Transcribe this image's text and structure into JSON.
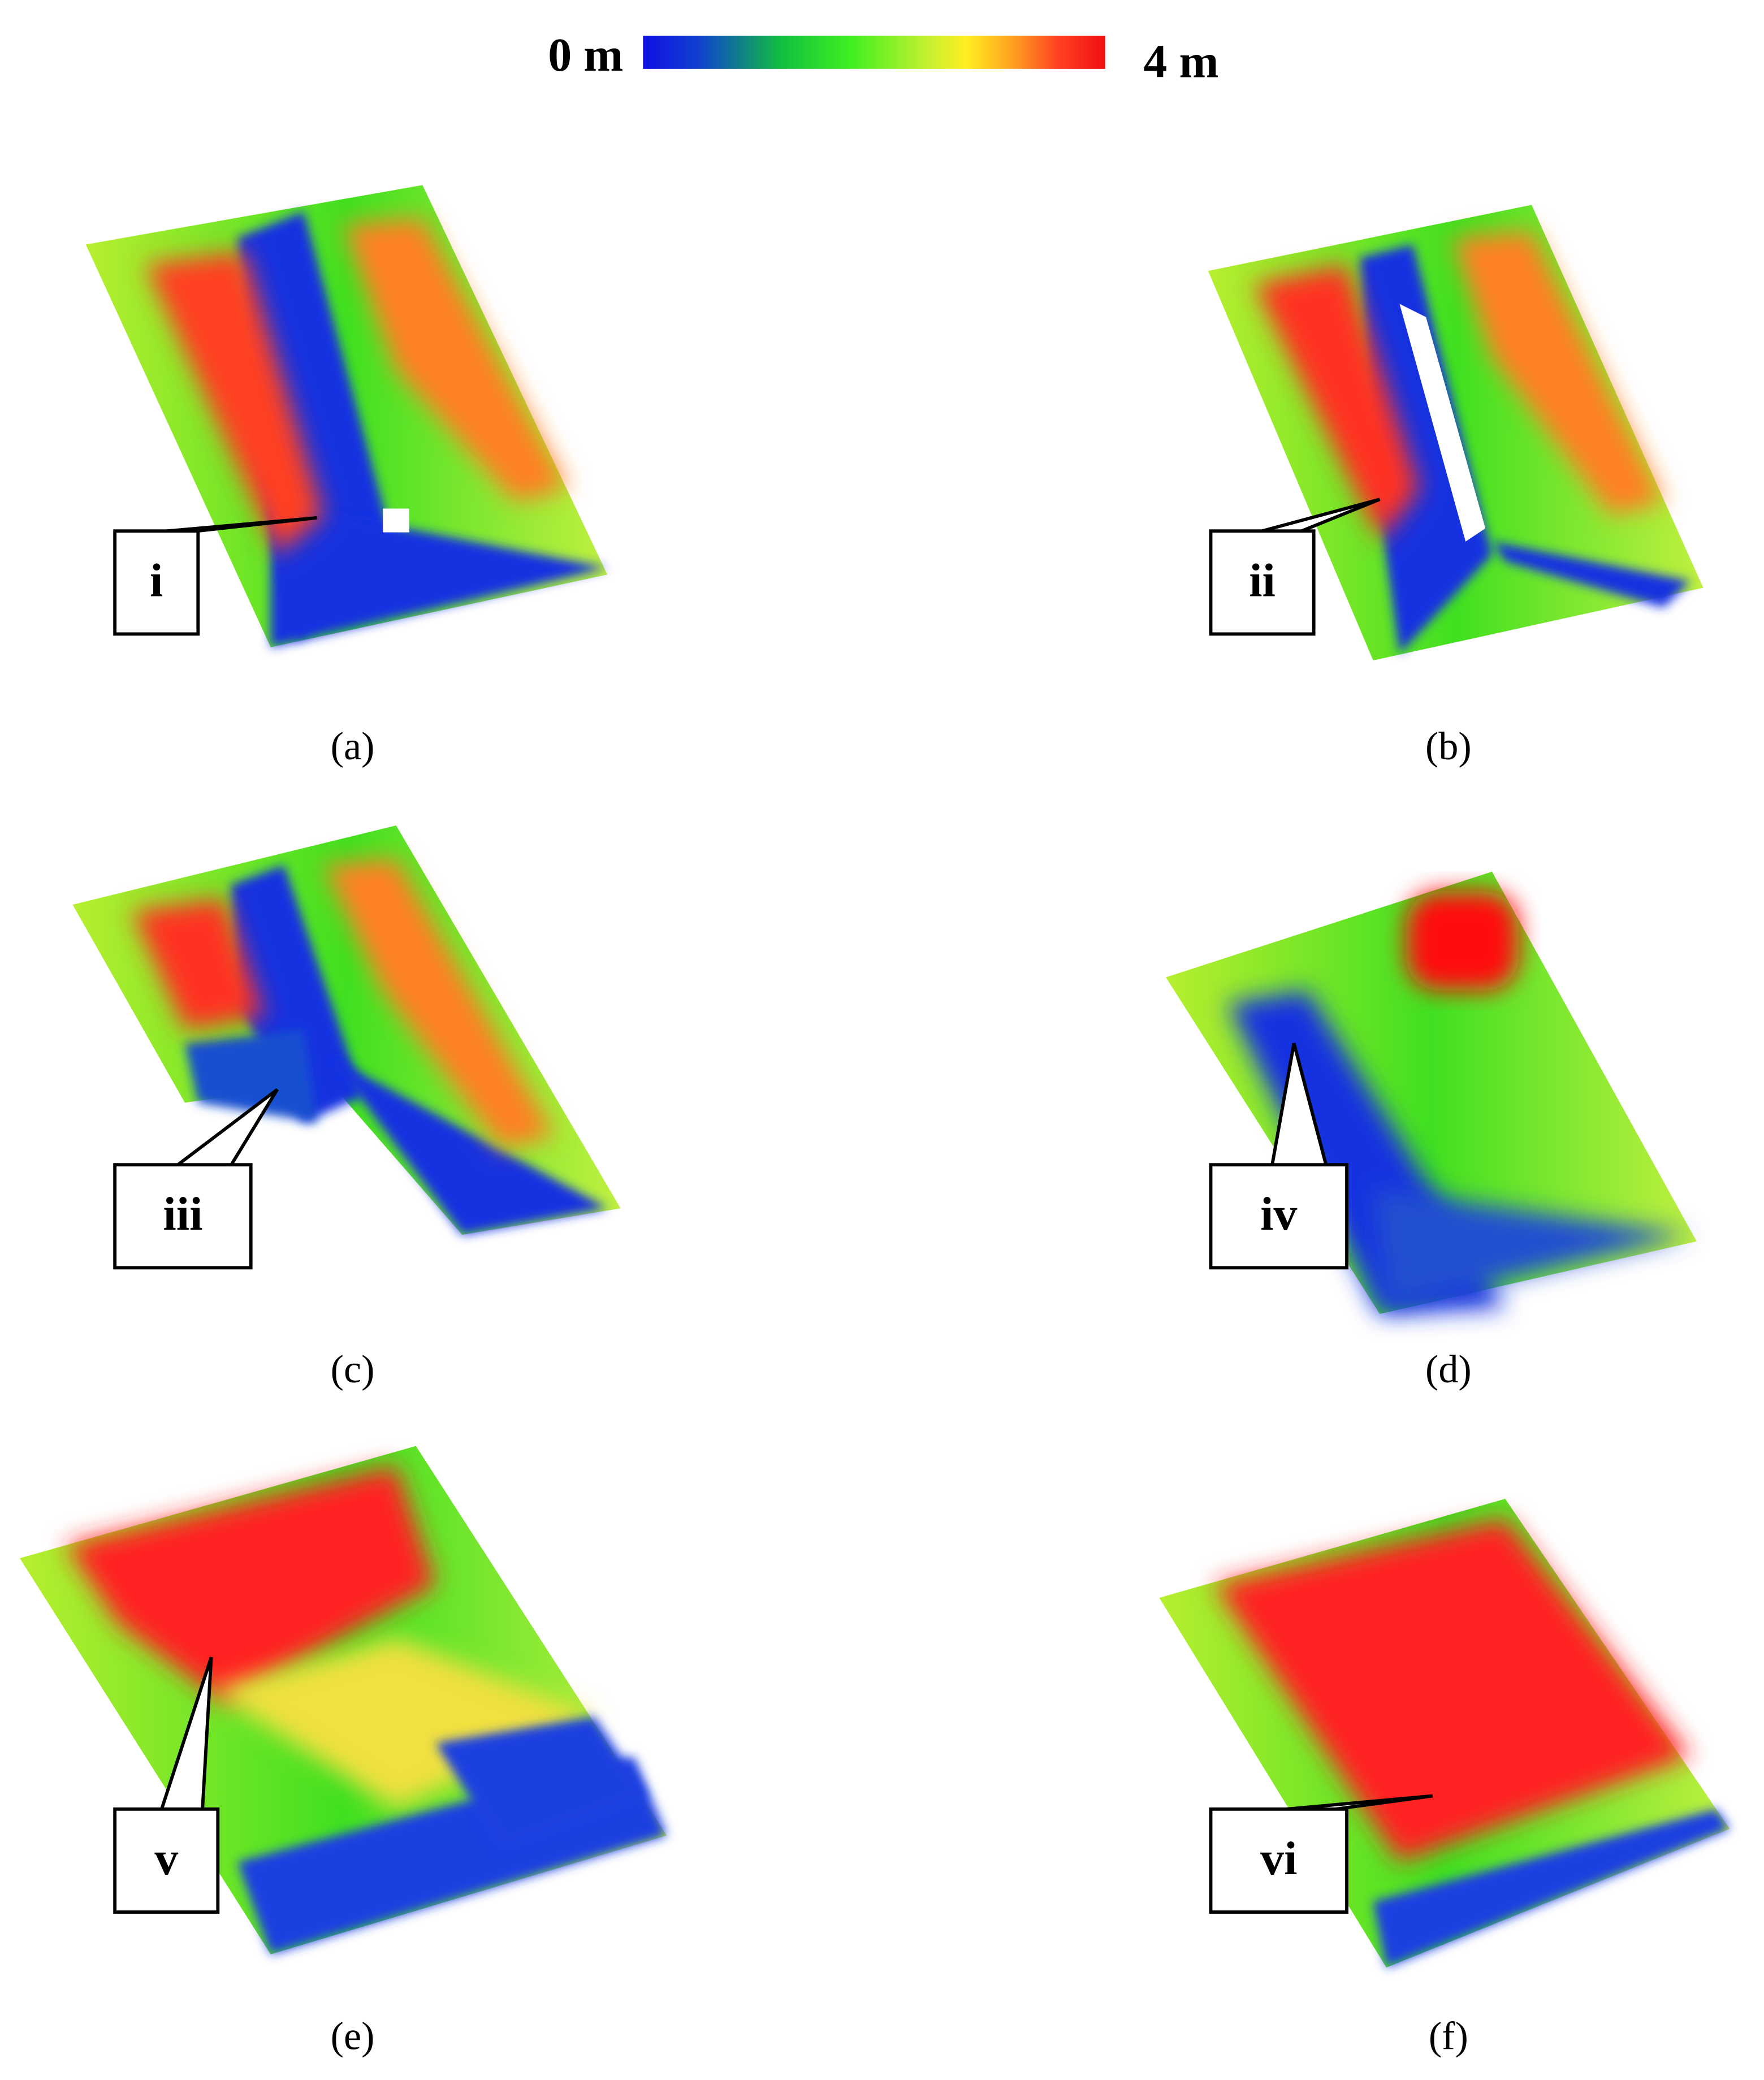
{
  "colorbar": {
    "min_label": "0 m",
    "max_label": "4 m"
  },
  "panels": [
    {
      "caption": "(a)",
      "callout": "i"
    },
    {
      "caption": "(b)",
      "callout": "ii"
    },
    {
      "caption": "(c)",
      "callout": "iii"
    },
    {
      "caption": "(d)",
      "callout": "iv"
    },
    {
      "caption": "(e)",
      "callout": "v"
    },
    {
      "caption": "(f)",
      "callout": "vi"
    }
  ]
}
